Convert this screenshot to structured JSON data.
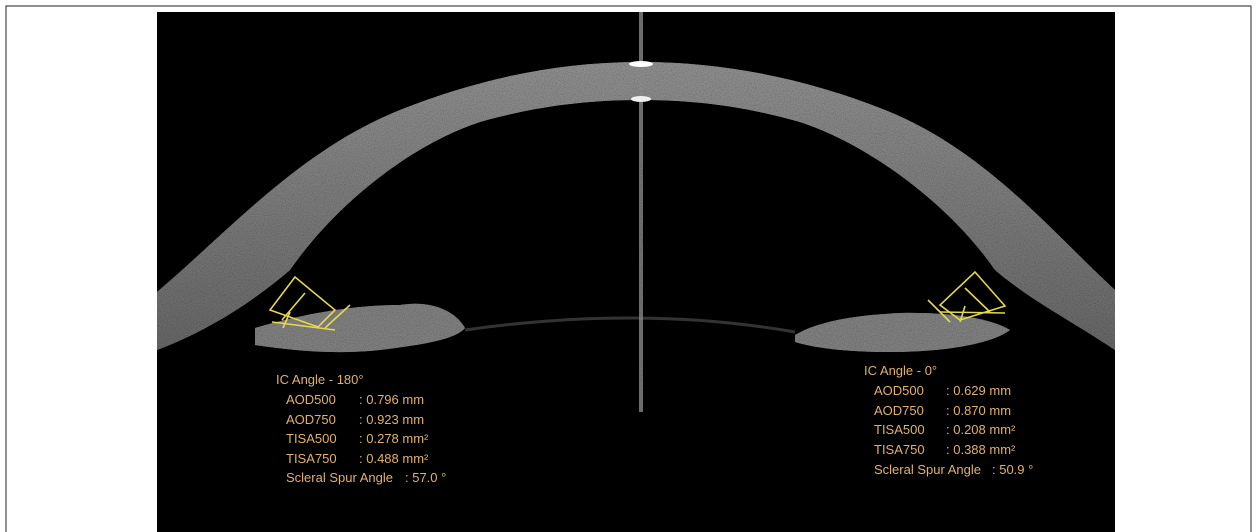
{
  "left_panel": {
    "title": "IC Angle - 180°",
    "rows": [
      {
        "label": "AOD500",
        "value": ": 0.796 mm"
      },
      {
        "label": "AOD750",
        "value": ": 0.923 mm"
      },
      {
        "label": "TISA500",
        "value": ": 0.278 mm²"
      },
      {
        "label": "TISA750",
        "value": ": 0.488 mm²"
      },
      {
        "label": "Scleral Spur Angle",
        "value": ": 57.0 °"
      }
    ]
  },
  "right_panel": {
    "title": "IC Angle - 0°",
    "rows": [
      {
        "label": "AOD500",
        "value": ": 0.629 mm"
      },
      {
        "label": "AOD750",
        "value": ": 0.870 mm"
      },
      {
        "label": "TISA500",
        "value": ": 0.208 mm²"
      },
      {
        "label": "TISA750",
        "value": ": 0.388 mm²"
      },
      {
        "label": "Scleral Spur Angle",
        "value": ": 50.9 °"
      }
    ]
  }
}
